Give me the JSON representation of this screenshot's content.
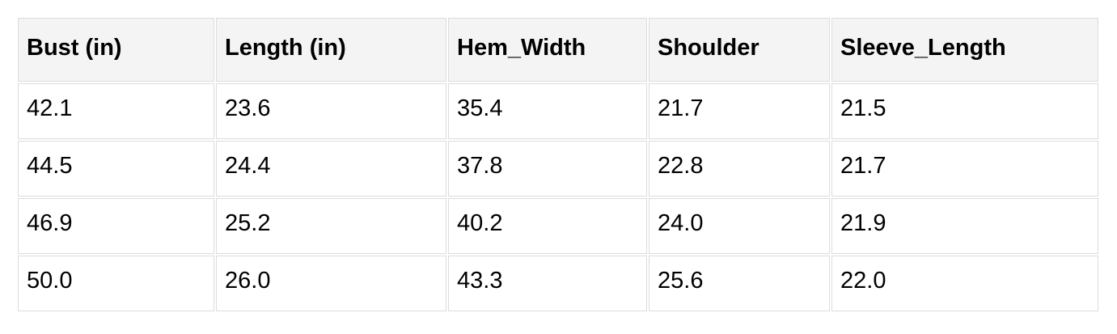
{
  "table": {
    "columns": [
      "Bust (in)",
      "Length (in)",
      "Hem_Width",
      "Shoulder",
      "Sleeve_Length"
    ],
    "rows": [
      [
        "42.1",
        "23.6",
        "35.4",
        "21.7",
        "21.5"
      ],
      [
        "44.5",
        "24.4",
        "37.8",
        "22.8",
        "21.7"
      ],
      [
        "46.9",
        "25.2",
        "40.2",
        "24.0",
        "21.9"
      ],
      [
        "50.0",
        "26.0",
        "43.3",
        "25.6",
        "22.0"
      ]
    ]
  },
  "colors": {
    "header_bg": "#f4f4f4",
    "border": "#dcdcdc",
    "text": "#000000",
    "page_bg": "#ffffff"
  }
}
